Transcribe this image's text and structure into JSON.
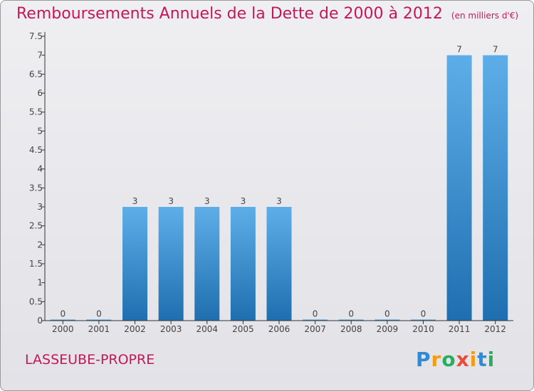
{
  "title": "Remboursements Annuels de la Dette de 2000 à 2012",
  "subtitle": "(en milliers d'€)",
  "commune": "LASSEUBE-PROPRE",
  "logo": "Proxiti",
  "colors": {
    "title": "#c2185b",
    "bar_top": "#5daee8",
    "bar_bottom": "#1f6fb0",
    "background": "#e6e6ea"
  },
  "chart_data": {
    "type": "bar",
    "title": "Remboursements Annuels de la Dette de 2000 à 2012",
    "subtitle": "(en milliers d'€)",
    "categories": [
      "2000",
      "2001",
      "2002",
      "2003",
      "2004",
      "2005",
      "2006",
      "2007",
      "2008",
      "2009",
      "2010",
      "2011",
      "2012"
    ],
    "values": [
      0,
      0,
      3,
      3,
      3,
      3,
      3,
      0,
      0,
      0,
      0,
      7,
      7
    ],
    "data_labels": [
      "0",
      "0",
      "3",
      "3",
      "3",
      "3",
      "3",
      "0",
      "0",
      "0",
      "0",
      "7",
      "7"
    ],
    "ylim": [
      0,
      7.5
    ],
    "y_ticks": [
      "0",
      "0.5",
      "1",
      "1.5",
      "2",
      "2.5",
      "3",
      "3.5",
      "4",
      "4.5",
      "5",
      "5.5",
      "6",
      "6.5",
      "7",
      "7.5"
    ],
    "grid": false
  }
}
